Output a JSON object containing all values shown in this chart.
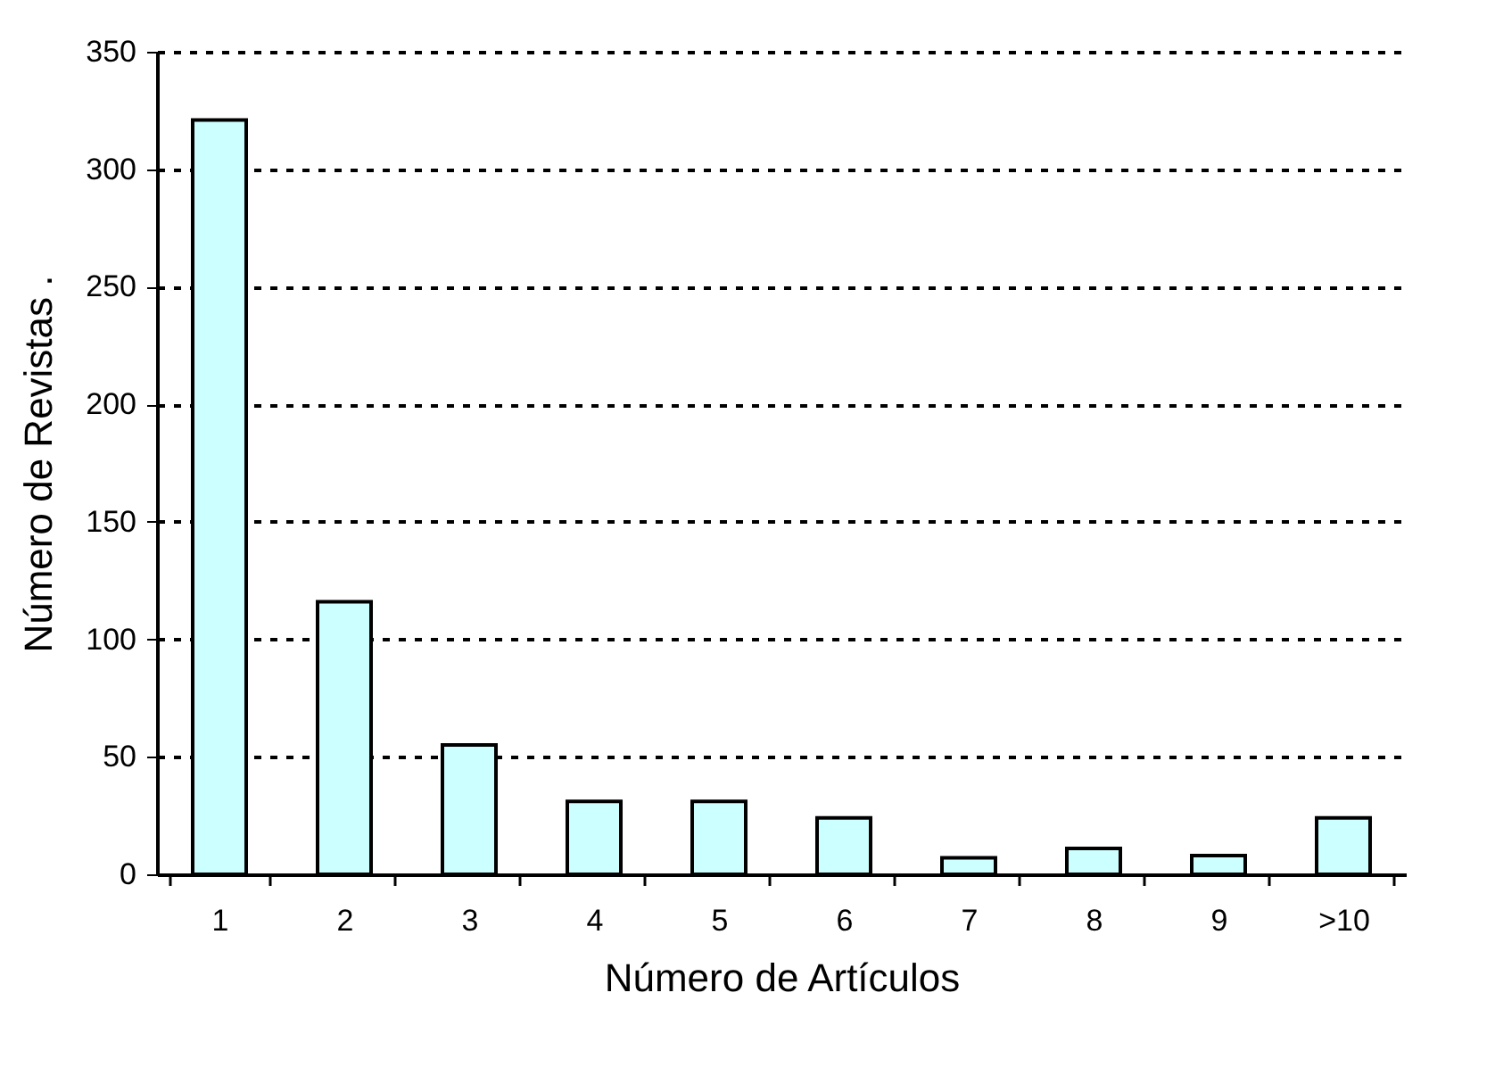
{
  "chart_data": {
    "type": "bar",
    "xlabel": "Número de Artículos",
    "ylabel": "Número de Revistas .",
    "categories": [
      "1",
      "2",
      "3",
      "4",
      "5",
      "6",
      "7",
      "8",
      "9",
      ">10"
    ],
    "values": [
      321,
      116,
      55,
      31,
      31,
      24,
      7,
      11,
      8,
      24
    ],
    "color": "#ccffff",
    "ylim": [
      0,
      350
    ],
    "yticks": [
      0,
      50,
      100,
      150,
      200,
      250,
      300,
      350
    ],
    "grid": "y",
    "line_style": "dashed"
  }
}
